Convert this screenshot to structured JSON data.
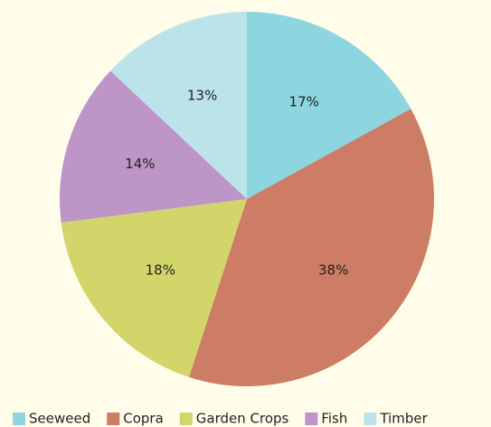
{
  "chart_data": {
    "type": "pie",
    "categories": [
      "Seeweed",
      "Copra",
      "Garden Crops",
      "Fish",
      "Timber"
    ],
    "values": [
      17,
      38,
      18,
      14,
      13
    ],
    "value_labels": [
      "17%",
      "38%",
      "18%",
      "14%",
      "13%"
    ],
    "colors": [
      "#8dd5df",
      "#cd7c65",
      "#d2d56a",
      "#bd95c6",
      "#bde3ea"
    ],
    "legend": "bottom"
  }
}
